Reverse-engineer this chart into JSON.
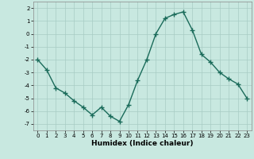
{
  "x": [
    0,
    1,
    2,
    3,
    4,
    5,
    6,
    7,
    8,
    9,
    10,
    11,
    12,
    13,
    14,
    15,
    16,
    17,
    18,
    19,
    20,
    21,
    22,
    23
  ],
  "y": [
    -2,
    -2.8,
    -4.2,
    -4.6,
    -5.2,
    -5.7,
    -6.3,
    -5.7,
    -6.4,
    -6.8,
    -5.5,
    -3.6,
    -2.0,
    0.0,
    1.2,
    1.5,
    1.7,
    0.3,
    -1.6,
    -2.2,
    -3.0,
    -3.5,
    -3.9,
    -5.0
  ],
  "xlabel": "Humidex (Indice chaleur)",
  "xlim": [
    -0.5,
    23.5
  ],
  "ylim": [
    -7.5,
    2.5
  ],
  "yticks": [
    -7,
    -6,
    -5,
    -4,
    -3,
    -2,
    -1,
    0,
    1,
    2
  ],
  "xticks": [
    0,
    1,
    2,
    3,
    4,
    5,
    6,
    7,
    8,
    9,
    10,
    11,
    12,
    13,
    14,
    15,
    16,
    17,
    18,
    19,
    20,
    21,
    22,
    23
  ],
  "line_color": "#1a6b5a",
  "marker": "+",
  "marker_size": 4.0,
  "bg_color": "#c8e8e0",
  "grid_color": "#a8ccc4",
  "line_width": 1.0,
  "tick_fontsize": 5.0,
  "xlabel_fontsize": 6.5
}
